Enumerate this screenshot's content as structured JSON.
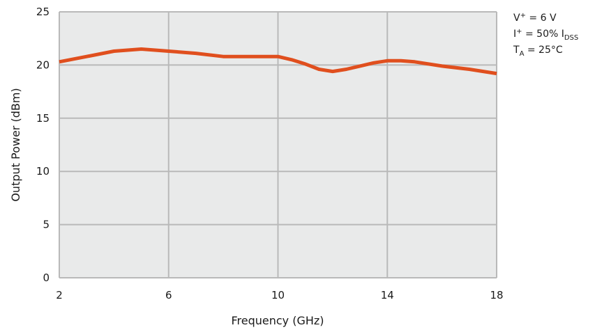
{
  "chart_data": {
    "type": "line",
    "xlabel": "Frequency (GHz)",
    "ylabel": "Output Power (dBm)",
    "xlim": [
      2,
      18
    ],
    "ylim": [
      0,
      25
    ],
    "xticks": [
      2,
      6,
      10,
      14,
      18
    ],
    "yticks": [
      0,
      5,
      10,
      15,
      20,
      25
    ],
    "grid": true,
    "colors": {
      "plot_bg": "#e9eaea",
      "grid": "#b9b9b9",
      "series": "#e04f1e"
    },
    "series": [
      {
        "x": [
          2,
          3,
          4,
          5,
          6,
          7,
          8,
          9,
          10,
          10.5,
          11,
          11.5,
          12,
          12.5,
          13,
          13.5,
          14,
          14.5,
          15,
          16,
          17,
          18
        ],
        "y": [
          20.3,
          20.8,
          21.3,
          21.5,
          21.3,
          21.1,
          20.8,
          20.8,
          20.8,
          20.5,
          20.1,
          19.6,
          19.4,
          19.6,
          19.9,
          20.2,
          20.4,
          20.4,
          20.3,
          19.9,
          19.6,
          19.2
        ]
      }
    ],
    "conditions": {
      "v_main": "V",
      "v_sup": "+",
      "v_rest": " = 6 V",
      "i_main": "I",
      "i_sup": "+",
      "i_rest": " = 50% I",
      "i_sub": "DSS",
      "t_main": "T",
      "t_sub": "A",
      "t_rest": " = 25°C"
    }
  }
}
